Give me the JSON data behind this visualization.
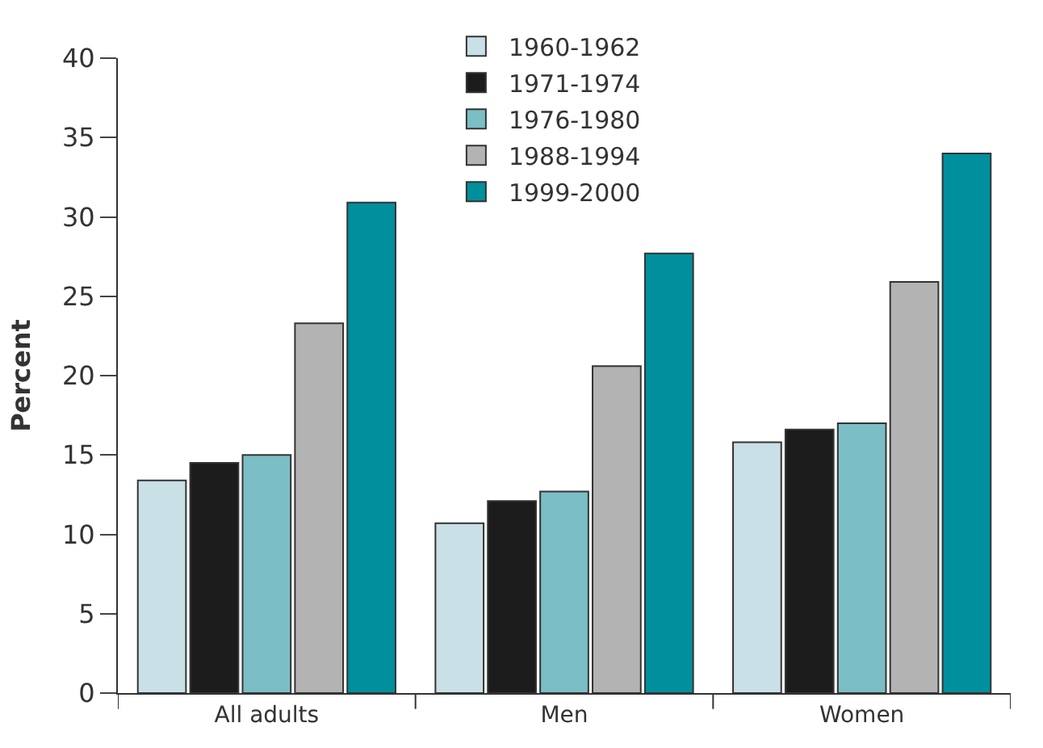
{
  "chart_data": {
    "type": "bar",
    "ylabel": "Percent",
    "categories": [
      "All adults",
      "Men",
      "Women"
    ],
    "series": [
      {
        "name": "1960-1962",
        "color": "#c8e0e6",
        "values": [
          13.4,
          10.7,
          15.8
        ]
      },
      {
        "name": "1971-1974",
        "color": "#1c1c1c",
        "values": [
          14.5,
          12.1,
          16.6
        ]
      },
      {
        "name": "1976-1980",
        "color": "#7bbec6",
        "values": [
          15.0,
          12.7,
          17.0
        ]
      },
      {
        "name": "1988-1994",
        "color": "#b3b3b3",
        "values": [
          23.3,
          20.6,
          25.9
        ]
      },
      {
        "name": "1999-2000",
        "color": "#008f9c",
        "values": [
          30.9,
          27.7,
          34.0
        ]
      }
    ],
    "ylim": [
      0,
      40
    ],
    "yticks": [
      0,
      5,
      10,
      15,
      20,
      25,
      30,
      35,
      40
    ],
    "legend": "top"
  }
}
